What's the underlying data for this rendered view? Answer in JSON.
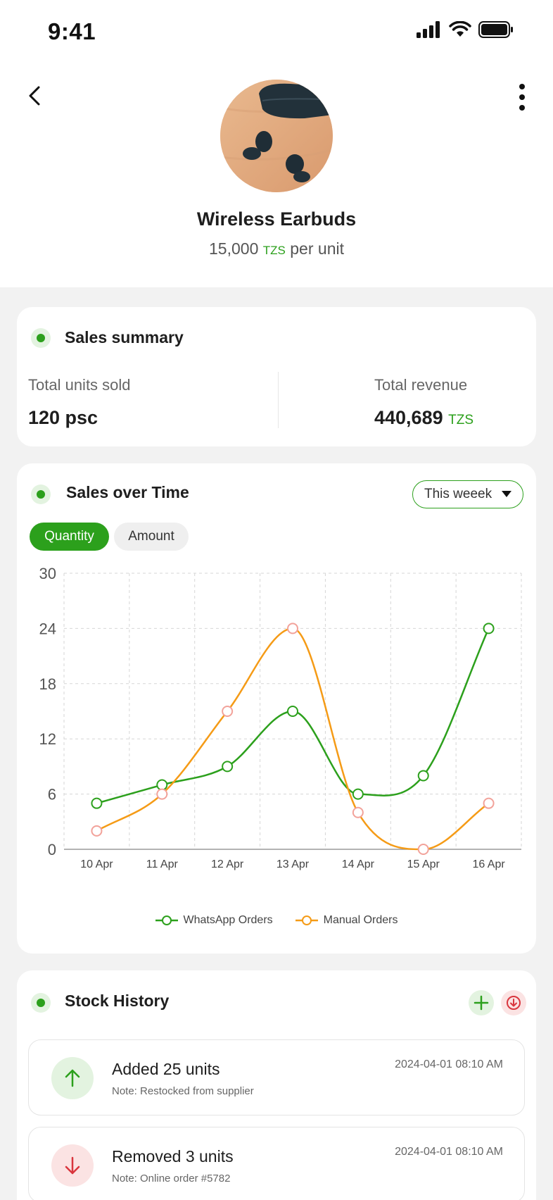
{
  "status_bar": {
    "time": "9:41"
  },
  "product": {
    "name": "Wireless Earbuds",
    "price": "15,000",
    "currency": "TZS",
    "unit_text": "per unit"
  },
  "sales_summary": {
    "title": "Sales summary",
    "units_label": "Total units sold",
    "units_value": "120 psc",
    "revenue_label": "Total revenue",
    "revenue_value": "440,689",
    "revenue_currency": "TZS"
  },
  "sales_over_time": {
    "title": "Sales over Time",
    "period": "This weeek",
    "tabs": [
      "Quantity",
      "Amount"
    ],
    "active_tab": "Quantity"
  },
  "chart_data": {
    "type": "line",
    "title": "",
    "xlabel": "",
    "ylabel": "",
    "categories": [
      "10 Apr",
      "11 Apr",
      "12 Apr",
      "13 Apr",
      "14 Apr",
      "15 Apr",
      "16 Apr"
    ],
    "y_ticks": [
      "0",
      "6",
      "12",
      "18",
      "24",
      "30"
    ],
    "ylim": [
      0,
      30
    ],
    "grid": true,
    "legend_position": "bottom",
    "series": [
      {
        "name": "WhatsApp Orders",
        "values": [
          5,
          7,
          9,
          15,
          6,
          8,
          24
        ],
        "color": "#2ca01c"
      },
      {
        "name": "Manual Orders",
        "values": [
          2,
          6,
          15,
          24,
          4,
          0,
          5
        ],
        "color": "#f59b16"
      }
    ]
  },
  "stock_history": {
    "title": "Stock History",
    "items": [
      {
        "type": "added",
        "title": "Added 25 units",
        "note": "Note: Restocked from supplier",
        "date": "2024-04-01  08:10 AM"
      },
      {
        "type": "removed",
        "title": "Removed 3 units",
        "note": "Note: Online order #5782",
        "date": "2024-04-01  08:10 AM"
      }
    ]
  },
  "colors": {
    "accent": "#2ca01c",
    "orange": "#f59b16",
    "danger": "#d9363e",
    "background": "#f2f2f2"
  },
  "icons": {
    "back": "chevron-left-icon",
    "more": "more-vertical-icon",
    "add": "plus-icon",
    "download": "download-circle-icon",
    "added": "arrow-up-icon",
    "removed": "arrow-down-icon"
  }
}
